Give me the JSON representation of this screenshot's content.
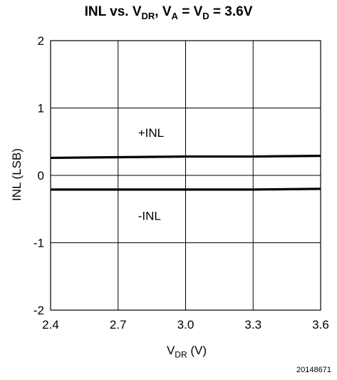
{
  "chart_data": {
    "type": "line",
    "title": {
      "text": "INL vs. V",
      "sub1": "DR",
      "mid1": ", V",
      "sub2": "A",
      "mid2": " = V",
      "sub3": "D",
      "tail": " = 3.6V"
    },
    "xlabel": {
      "main": "V",
      "sub": "DR",
      "unit": " (V)"
    },
    "ylabel": "INL (LSB)",
    "xlim": [
      2.4,
      3.6
    ],
    "ylim": [
      -2,
      2
    ],
    "x_ticks": [
      "2.4",
      "2.7",
      "3.0",
      "3.3",
      "3.6"
    ],
    "y_ticks": [
      "2",
      "1",
      "0",
      "-1",
      "-2"
    ],
    "grid": true,
    "series": [
      {
        "name": "+INL",
        "x": [
          2.4,
          2.7,
          3.0,
          3.3,
          3.6
        ],
        "y": [
          0.26,
          0.27,
          0.28,
          0.28,
          0.29
        ]
      },
      {
        "name": "-INL",
        "x": [
          2.4,
          2.7,
          3.0,
          3.3,
          3.6
        ],
        "y": [
          -0.21,
          -0.21,
          -0.21,
          -0.21,
          -0.2
        ]
      }
    ]
  },
  "figure_id": "20148671"
}
